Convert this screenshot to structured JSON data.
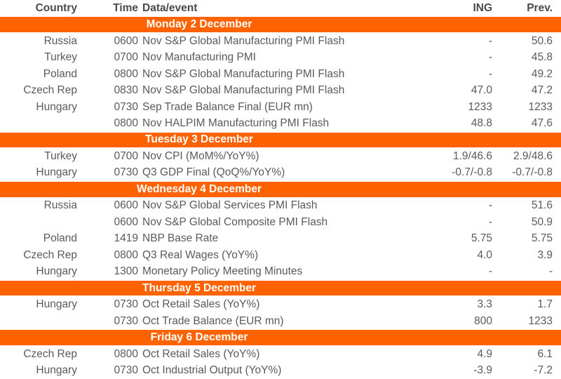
{
  "colors": {
    "accent": "#FF6200",
    "header_text": "#4A4A49",
    "body_text": "#595A5C",
    "banner_text": "#FFFFFF"
  },
  "columns": {
    "country": "Country",
    "time": "Time",
    "event": "Data/event",
    "ing": "ING",
    "prev": "Prev."
  },
  "sections": [
    {
      "title": "Monday 2 December",
      "rows": [
        {
          "country": "Russia",
          "time": "0600",
          "event": "Nov S&P Global Manufacturing PMI Flash",
          "ing": "-",
          "prev": "50.6"
        },
        {
          "country": "Turkey",
          "time": "0700",
          "event": "Nov Manufacturing PMI",
          "ing": "-",
          "prev": "45.8"
        },
        {
          "country": "Poland",
          "time": "0800",
          "event": "Nov S&P Global Manufacturing PMI Flash",
          "ing": "-",
          "prev": "49.2"
        },
        {
          "country": "Czech Rep",
          "time": "0830",
          "event": "Nov S&P Global Manufacturing PMI Flash",
          "ing": "47.0",
          "prev": "47.2"
        },
        {
          "country": "Hungary",
          "time": "0730",
          "event": "Sep Trade Balance Final (EUR mn)",
          "ing": "1233",
          "prev": "1233"
        },
        {
          "country": "",
          "time": "0800",
          "event": "Nov HALPIM Manufacturing PMI Flash",
          "ing": "48.8",
          "prev": "47.6"
        }
      ]
    },
    {
      "title": "Tuesday 3 December",
      "rows": [
        {
          "country": "Turkey",
          "time": "0700",
          "event": "Nov CPI (MoM%/YoY%)",
          "ing": "1.9/46.6",
          "prev": "2.9/48.6"
        },
        {
          "country": "Hungary",
          "time": "0730",
          "event": "Q3 GDP Final (QoQ%/YoY%)",
          "ing": "-0.7/-0.8",
          "prev": "-0.7/-0.8"
        }
      ]
    },
    {
      "title": "Wednesday 4 December",
      "rows": [
        {
          "country": "Russia",
          "time": "0600",
          "event": "Nov S&P Global Services PMI Flash",
          "ing": "-",
          "prev": "51.6"
        },
        {
          "country": "",
          "time": "0600",
          "event": "Nov S&P Global Composite PMI Flash",
          "ing": "-",
          "prev": "50.9"
        },
        {
          "country": "Poland",
          "time": "1419",
          "event": "NBP Base Rate",
          "ing": "5.75",
          "prev": "5.75"
        },
        {
          "country": "Czech Rep",
          "time": "0800",
          "event": "Q3 Real Wages (YoY%)",
          "ing": "4.0",
          "prev": "3.9"
        },
        {
          "country": "Hungary",
          "time": "1300",
          "event": "Monetary Policy Meeting Minutes",
          "ing": "-",
          "prev": "-"
        }
      ]
    },
    {
      "title": "Thursday 5 December",
      "rows": [
        {
          "country": "Hungary",
          "time": "0730",
          "event": "Oct Retail Sales (YoY%)",
          "ing": "3.3",
          "prev": "1.7"
        },
        {
          "country": "",
          "time": "0730",
          "event": "Oct Trade Balance (EUR mn)",
          "ing": "800",
          "prev": "1233"
        }
      ]
    },
    {
      "title": "Friday 6 December",
      "rows": [
        {
          "country": "Czech Rep",
          "time": "0800",
          "event": "Oct Retail Sales (YoY%)",
          "ing": "4.9",
          "prev": "6.1"
        },
        {
          "country": "Hungary",
          "time": "0730",
          "event": "Oct Industrial Output (YoY%)",
          "ing": "-3.9",
          "prev": "-7.2"
        }
      ]
    }
  ]
}
